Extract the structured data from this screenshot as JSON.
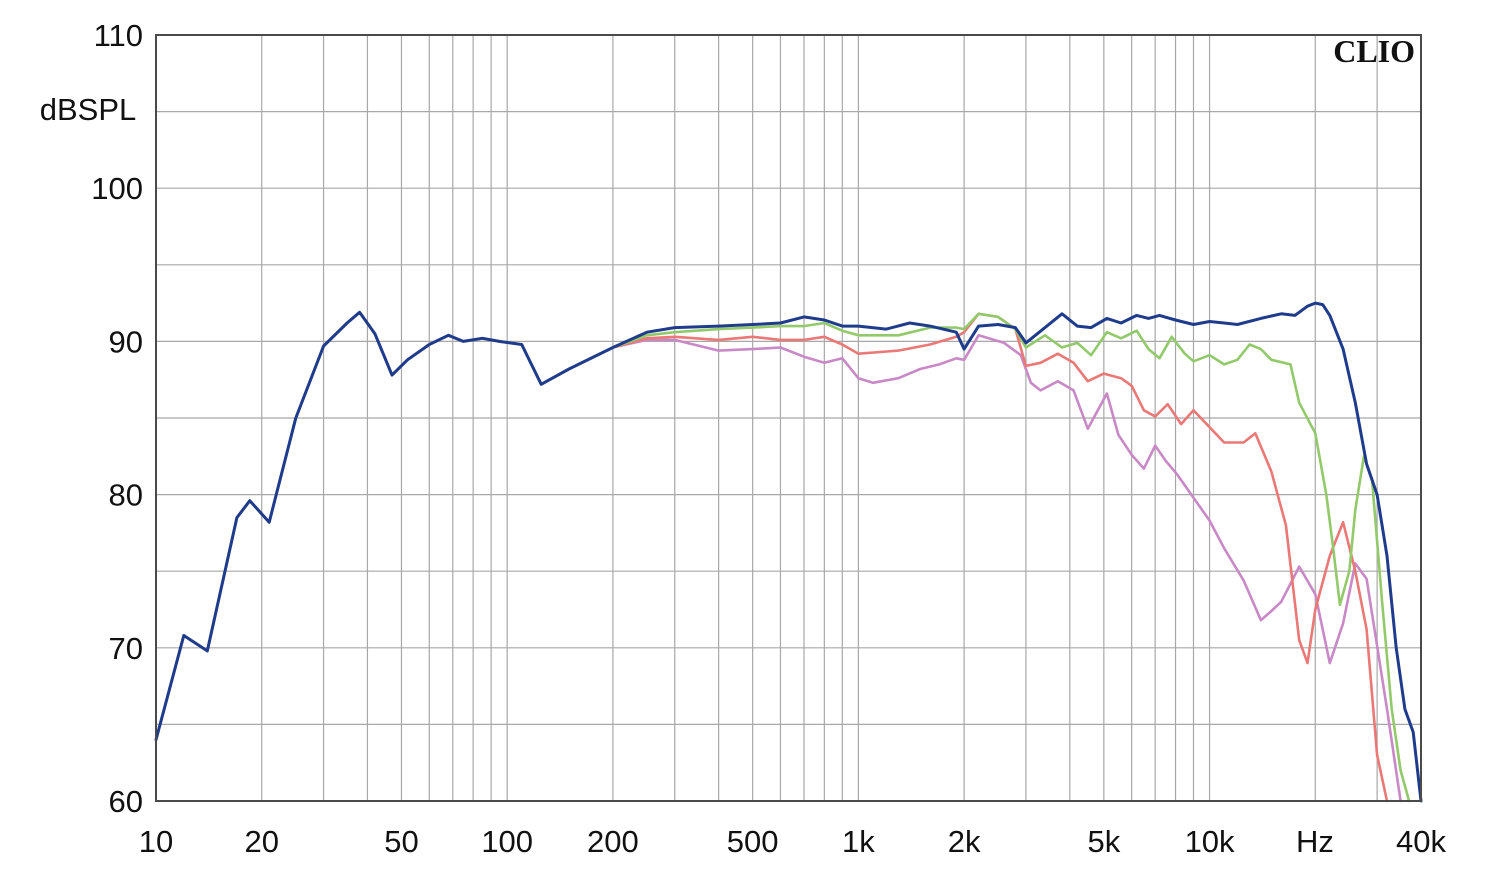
{
  "chart_data": {
    "type": "line",
    "title": "",
    "brand": "CLIO",
    "xlabel": "",
    "ylabel": "",
    "x_unit": "Hz",
    "y_unit": "dBSPL",
    "x_scale": "log",
    "xlim": [
      10,
      40000
    ],
    "ylim": [
      60,
      110
    ],
    "grid": true,
    "x_ticks": [
      {
        "value": 10,
        "label": "10"
      },
      {
        "value": 20,
        "label": "20"
      },
      {
        "value": 50,
        "label": "50"
      },
      {
        "value": 100,
        "label": "100"
      },
      {
        "value": 200,
        "label": "200"
      },
      {
        "value": 500,
        "label": "500"
      },
      {
        "value": 1000,
        "label": "1k"
      },
      {
        "value": 2000,
        "label": "2k"
      },
      {
        "value": 5000,
        "label": "5k"
      },
      {
        "value": 10000,
        "label": "10k"
      },
      {
        "value": 40000,
        "label": "40k"
      }
    ],
    "y_ticks": [
      {
        "value": 60,
        "label": "60"
      },
      {
        "value": 70,
        "label": "70"
      },
      {
        "value": 80,
        "label": "80"
      },
      {
        "value": 90,
        "label": "90"
      },
      {
        "value": 100,
        "label": "100"
      },
      {
        "value": 110,
        "label": "110"
      }
    ],
    "series": [
      {
        "color": "#c889c6",
        "points": [
          [
            10,
            64
          ],
          [
            12,
            70.8
          ],
          [
            14,
            69.8
          ],
          [
            17,
            78.5
          ],
          [
            18.5,
            79.6
          ],
          [
            21,
            78.2
          ],
          [
            25,
            85
          ],
          [
            30,
            89.7
          ],
          [
            35,
            91.2
          ],
          [
            38,
            91.9
          ],
          [
            42,
            90.5
          ],
          [
            47,
            87.8
          ],
          [
            52,
            88.8
          ],
          [
            60,
            89.8
          ],
          [
            68,
            90.4
          ],
          [
            75,
            90
          ],
          [
            85,
            90.2
          ],
          [
            95,
            90
          ],
          [
            110,
            89.8
          ],
          [
            125,
            87.2
          ],
          [
            150,
            88.2
          ],
          [
            200,
            89.6
          ],
          [
            250,
            90.1
          ],
          [
            300,
            90.1
          ],
          [
            400,
            89.4
          ],
          [
            500,
            89.5
          ],
          [
            600,
            89.6
          ],
          [
            700,
            89
          ],
          [
            800,
            88.6
          ],
          [
            900,
            88.9
          ],
          [
            1000,
            87.6
          ],
          [
            1100,
            87.3
          ],
          [
            1300,
            87.6
          ],
          [
            1500,
            88.2
          ],
          [
            1700,
            88.5
          ],
          [
            1900,
            88.9
          ],
          [
            2000,
            88.8
          ],
          [
            2200,
            90.4
          ],
          [
            2600,
            89.9
          ],
          [
            2900,
            89.1
          ],
          [
            3100,
            87.3
          ],
          [
            3300,
            86.8
          ],
          [
            3700,
            87.4
          ],
          [
            4100,
            86.8
          ],
          [
            4500,
            84.3
          ],
          [
            5100,
            86.6
          ],
          [
            5500,
            83.9
          ],
          [
            6000,
            82.6
          ],
          [
            6500,
            81.7
          ],
          [
            7000,
            83.2
          ],
          [
            7500,
            82.2
          ],
          [
            8100,
            81.3
          ],
          [
            9000,
            79.8
          ],
          [
            10000,
            78.3
          ],
          [
            11000,
            76.5
          ],
          [
            12500,
            74.4
          ],
          [
            14000,
            71.8
          ],
          [
            15000,
            72.4
          ],
          [
            16000,
            73
          ],
          [
            18000,
            75.3
          ],
          [
            20000,
            73.5
          ],
          [
            22000,
            69
          ],
          [
            24000,
            71.6
          ],
          [
            26000,
            75.5
          ],
          [
            28000,
            74.5
          ],
          [
            32000,
            66
          ],
          [
            35000,
            60
          ]
        ]
      },
      {
        "color": "#ea7876",
        "points": [
          [
            10,
            64
          ],
          [
            12,
            70.8
          ],
          [
            14,
            69.8
          ],
          [
            17,
            78.5
          ],
          [
            18.5,
            79.6
          ],
          [
            21,
            78.2
          ],
          [
            25,
            85
          ],
          [
            30,
            89.7
          ],
          [
            35,
            91.2
          ],
          [
            38,
            91.9
          ],
          [
            42,
            90.5
          ],
          [
            47,
            87.8
          ],
          [
            52,
            88.8
          ],
          [
            60,
            89.8
          ],
          [
            68,
            90.4
          ],
          [
            75,
            90
          ],
          [
            85,
            90.2
          ],
          [
            95,
            90
          ],
          [
            110,
            89.8
          ],
          [
            125,
            87.2
          ],
          [
            150,
            88.2
          ],
          [
            200,
            89.6
          ],
          [
            250,
            90.2
          ],
          [
            300,
            90.3
          ],
          [
            400,
            90.1
          ],
          [
            500,
            90.3
          ],
          [
            600,
            90.1
          ],
          [
            700,
            90.1
          ],
          [
            800,
            90.3
          ],
          [
            900,
            89.8
          ],
          [
            1000,
            89.2
          ],
          [
            1300,
            89.4
          ],
          [
            1600,
            89.8
          ],
          [
            1900,
            90.3
          ],
          [
            2000,
            90.6
          ],
          [
            2200,
            91.8
          ],
          [
            2500,
            91.6
          ],
          [
            2800,
            90.8
          ],
          [
            3000,
            88.4
          ],
          [
            3300,
            88.6
          ],
          [
            3700,
            89.2
          ],
          [
            4100,
            88.6
          ],
          [
            4500,
            87.4
          ],
          [
            5000,
            87.9
          ],
          [
            5600,
            87.6
          ],
          [
            6000,
            87.1
          ],
          [
            6500,
            85.5
          ],
          [
            7000,
            85.1
          ],
          [
            7600,
            85.9
          ],
          [
            8300,
            84.6
          ],
          [
            9000,
            85.5
          ],
          [
            10000,
            84.4
          ],
          [
            11000,
            83.4
          ],
          [
            12500,
            83.4
          ],
          [
            13500,
            84
          ],
          [
            15000,
            81.5
          ],
          [
            16500,
            78
          ],
          [
            18000,
            70.5
          ],
          [
            19000,
            69
          ],
          [
            20000,
            72.5
          ],
          [
            22000,
            76
          ],
          [
            24000,
            78.2
          ],
          [
            26000,
            75
          ],
          [
            28000,
            71.2
          ],
          [
            30000,
            63
          ],
          [
            32000,
            60
          ]
        ]
      },
      {
        "color": "#92c96a",
        "points": [
          [
            10,
            64
          ],
          [
            12,
            70.8
          ],
          [
            14,
            69.8
          ],
          [
            17,
            78.5
          ],
          [
            18.5,
            79.6
          ],
          [
            21,
            78.2
          ],
          [
            25,
            85
          ],
          [
            30,
            89.7
          ],
          [
            35,
            91.2
          ],
          [
            38,
            91.9
          ],
          [
            42,
            90.5
          ],
          [
            47,
            87.8
          ],
          [
            52,
            88.8
          ],
          [
            60,
            89.8
          ],
          [
            68,
            90.4
          ],
          [
            75,
            90
          ],
          [
            85,
            90.2
          ],
          [
            95,
            90
          ],
          [
            110,
            89.8
          ],
          [
            125,
            87.2
          ],
          [
            150,
            88.2
          ],
          [
            200,
            89.6
          ],
          [
            250,
            90.4
          ],
          [
            300,
            90.6
          ],
          [
            400,
            90.8
          ],
          [
            500,
            90.9
          ],
          [
            600,
            91
          ],
          [
            700,
            91
          ],
          [
            800,
            91.2
          ],
          [
            900,
            90.7
          ],
          [
            1000,
            90.4
          ],
          [
            1300,
            90.4
          ],
          [
            1600,
            90.9
          ],
          [
            1900,
            90.9
          ],
          [
            2000,
            90.8
          ],
          [
            2200,
            91.8
          ],
          [
            2500,
            91.6
          ],
          [
            2800,
            90.8
          ],
          [
            3000,
            89.6
          ],
          [
            3400,
            90.4
          ],
          [
            3800,
            89.6
          ],
          [
            4200,
            89.9
          ],
          [
            4600,
            89.1
          ],
          [
            5100,
            90.6
          ],
          [
            5600,
            90.2
          ],
          [
            6200,
            90.7
          ],
          [
            6700,
            89.5
          ],
          [
            7200,
            88.9
          ],
          [
            7800,
            90.3
          ],
          [
            8500,
            89.2
          ],
          [
            9000,
            88.7
          ],
          [
            10000,
            89.1
          ],
          [
            11000,
            88.5
          ],
          [
            12000,
            88.8
          ],
          [
            13000,
            89.8
          ],
          [
            14000,
            89.5
          ],
          [
            15000,
            88.8
          ],
          [
            17000,
            88.5
          ],
          [
            18000,
            86
          ],
          [
            20000,
            84
          ],
          [
            21500,
            80
          ],
          [
            22500,
            76.5
          ],
          [
            23500,
            72.8
          ],
          [
            25000,
            75
          ],
          [
            26000,
            79
          ],
          [
            27500,
            82.5
          ],
          [
            29000,
            81
          ],
          [
            31000,
            73
          ],
          [
            33000,
            66
          ],
          [
            35000,
            62
          ],
          [
            37000,
            60
          ]
        ]
      },
      {
        "color": "#1f3c8c",
        "points": [
          [
            10,
            64
          ],
          [
            12,
            70.8
          ],
          [
            14,
            69.8
          ],
          [
            17,
            78.5
          ],
          [
            18.5,
            79.6
          ],
          [
            21,
            78.2
          ],
          [
            25,
            85
          ],
          [
            30,
            89.7
          ],
          [
            35,
            91.2
          ],
          [
            38,
            91.9
          ],
          [
            42,
            90.5
          ],
          [
            47,
            87.8
          ],
          [
            52,
            88.8
          ],
          [
            60,
            89.8
          ],
          [
            68,
            90.4
          ],
          [
            75,
            90
          ],
          [
            85,
            90.2
          ],
          [
            95,
            90
          ],
          [
            110,
            89.8
          ],
          [
            125,
            87.2
          ],
          [
            150,
            88.2
          ],
          [
            200,
            89.6
          ],
          [
            250,
            90.6
          ],
          [
            300,
            90.9
          ],
          [
            400,
            91
          ],
          [
            500,
            91.1
          ],
          [
            600,
            91.2
          ],
          [
            700,
            91.6
          ],
          [
            800,
            91.4
          ],
          [
            900,
            91
          ],
          [
            1000,
            91
          ],
          [
            1200,
            90.8
          ],
          [
            1400,
            91.2
          ],
          [
            1600,
            91
          ],
          [
            1900,
            90.6
          ],
          [
            2000,
            89.5
          ],
          [
            2200,
            91
          ],
          [
            2500,
            91.1
          ],
          [
            2800,
            90.9
          ],
          [
            3000,
            89.9
          ],
          [
            3400,
            90.9
          ],
          [
            3800,
            91.8
          ],
          [
            4200,
            91
          ],
          [
            4600,
            90.9
          ],
          [
            5100,
            91.5
          ],
          [
            5600,
            91.2
          ],
          [
            6200,
            91.7
          ],
          [
            6700,
            91.5
          ],
          [
            7200,
            91.7
          ],
          [
            8000,
            91.4
          ],
          [
            9000,
            91.1
          ],
          [
            10000,
            91.3
          ],
          [
            11000,
            91.2
          ],
          [
            12000,
            91.1
          ],
          [
            14000,
            91.5
          ],
          [
            16000,
            91.8
          ],
          [
            17500,
            91.7
          ],
          [
            19000,
            92.3
          ],
          [
            20000,
            92.5
          ],
          [
            21000,
            92.4
          ],
          [
            22000,
            91.7
          ],
          [
            24000,
            89.5
          ],
          [
            26000,
            86
          ],
          [
            28000,
            82
          ],
          [
            30000,
            80
          ],
          [
            32000,
            76
          ],
          [
            34000,
            70
          ],
          [
            36000,
            66
          ],
          [
            38000,
            64.5
          ],
          [
            40000,
            60
          ]
        ]
      }
    ]
  }
}
